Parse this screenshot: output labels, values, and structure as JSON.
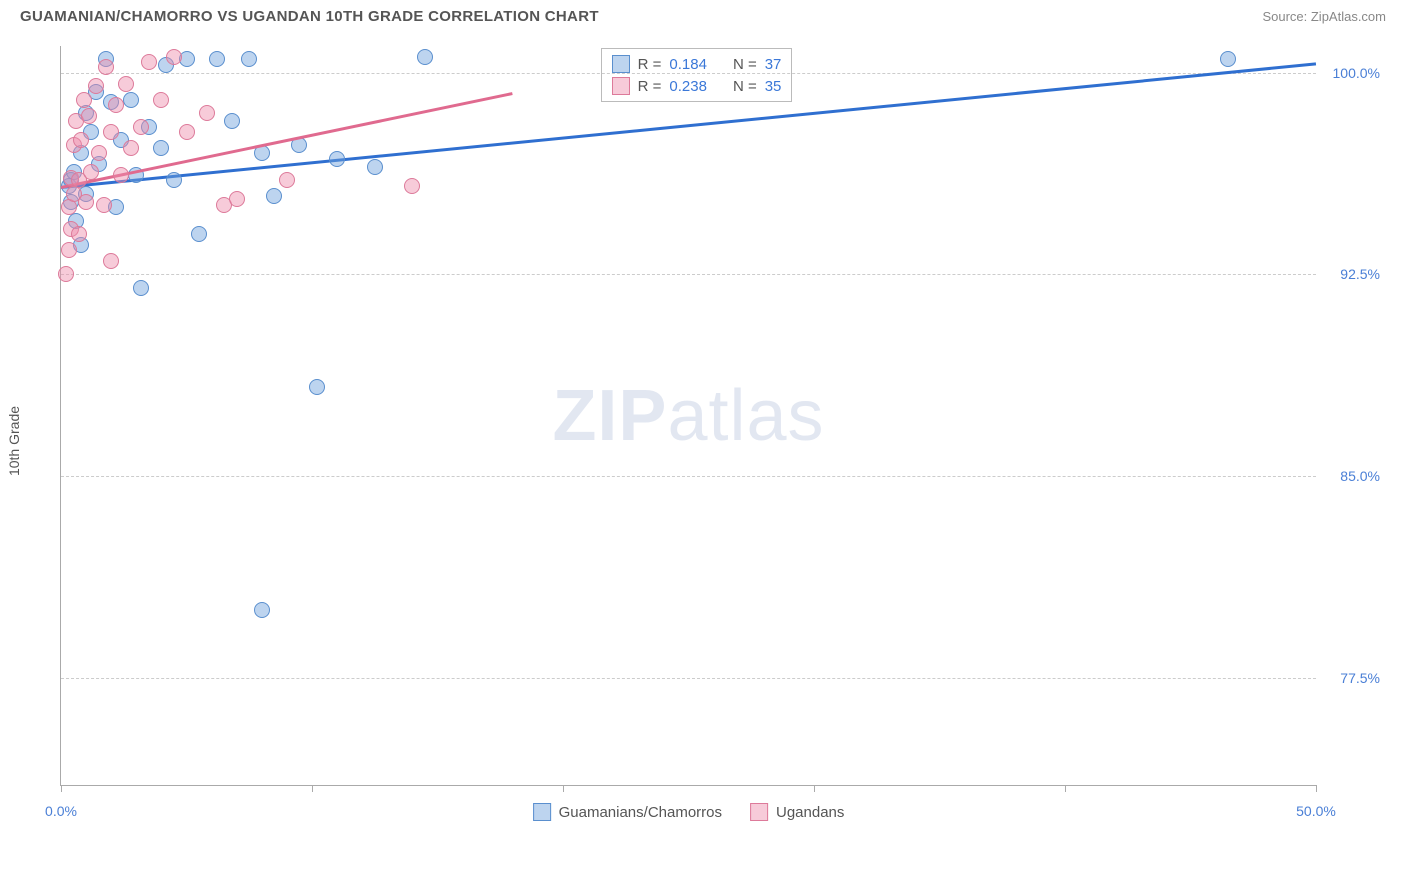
{
  "title": "GUAMANIAN/CHAMORRO VS UGANDAN 10TH GRADE CORRELATION CHART",
  "source_label": "Source: ",
  "source_name": "ZipAtlas.com",
  "y_axis_label": "10th Grade",
  "watermark_bold": "ZIP",
  "watermark_light": "atlas",
  "chart": {
    "type": "scatter",
    "xlim": [
      0.0,
      50.0
    ],
    "ylim": [
      73.5,
      101.0
    ],
    "x_ticks": [
      0.0,
      10.0,
      20.0,
      30.0,
      40.0,
      50.0
    ],
    "x_tick_labels": [
      "0.0%",
      "",
      "",
      "",
      "",
      "50.0%"
    ],
    "y_ticks": [
      77.5,
      85.0,
      92.5,
      100.0
    ],
    "y_tick_labels": [
      "77.5%",
      "85.0%",
      "92.5%",
      "100.0%"
    ],
    "grid_color": "#cccccc",
    "axis_color": "#aaaaaa",
    "background_color": "#ffffff",
    "marker_radius": 8,
    "series": [
      {
        "name": "Guamanians/Chamorros",
        "fill": "rgba(108,160,220,0.45)",
        "stroke": "#5a8fce",
        "line_color": "#2f6fd0",
        "R": "0.184",
        "N": "37",
        "trend": {
          "x1": 0.0,
          "y1": 95.8,
          "x2": 50.0,
          "y2": 100.4
        },
        "points": [
          [
            0.3,
            95.8
          ],
          [
            0.4,
            96.0
          ],
          [
            0.4,
            95.2
          ],
          [
            0.5,
            96.3
          ],
          [
            0.6,
            94.5
          ],
          [
            0.8,
            97.0
          ],
          [
            0.8,
            93.6
          ],
          [
            1.0,
            95.5
          ],
          [
            1.0,
            98.5
          ],
          [
            1.2,
            97.8
          ],
          [
            1.4,
            99.3
          ],
          [
            1.5,
            96.6
          ],
          [
            1.8,
            100.5
          ],
          [
            2.0,
            98.9
          ],
          [
            2.2,
            95.0
          ],
          [
            2.4,
            97.5
          ],
          [
            2.8,
            99.0
          ],
          [
            3.0,
            96.2
          ],
          [
            3.2,
            92.0
          ],
          [
            3.5,
            98.0
          ],
          [
            4.0,
            97.2
          ],
          [
            4.2,
            100.3
          ],
          [
            4.5,
            96.0
          ],
          [
            5.0,
            100.5
          ],
          [
            5.5,
            94.0
          ],
          [
            6.2,
            100.5
          ],
          [
            6.8,
            98.2
          ],
          [
            7.5,
            100.5
          ],
          [
            8.0,
            97.0
          ],
          [
            8.5,
            95.4
          ],
          [
            9.5,
            97.3
          ],
          [
            10.2,
            88.3
          ],
          [
            11.0,
            96.8
          ],
          [
            12.5,
            96.5
          ],
          [
            14.5,
            100.6
          ],
          [
            8.0,
            80.0
          ],
          [
            46.5,
            100.5
          ]
        ]
      },
      {
        "name": "Ugandans",
        "fill": "rgba(238,140,170,0.45)",
        "stroke": "#dd7a9a",
        "line_color": "#e06a8f",
        "R": "0.238",
        "N": "35",
        "trend": {
          "x1": 0.0,
          "y1": 95.8,
          "x2": 18.0,
          "y2": 99.3
        },
        "points": [
          [
            0.2,
            92.5
          ],
          [
            0.3,
            93.4
          ],
          [
            0.3,
            95.0
          ],
          [
            0.4,
            96.1
          ],
          [
            0.4,
            94.2
          ],
          [
            0.5,
            97.3
          ],
          [
            0.5,
            95.5
          ],
          [
            0.6,
            98.2
          ],
          [
            0.7,
            96.0
          ],
          [
            0.7,
            94.0
          ],
          [
            0.8,
            97.5
          ],
          [
            0.9,
            99.0
          ],
          [
            1.0,
            95.2
          ],
          [
            1.1,
            98.4
          ],
          [
            1.2,
            96.3
          ],
          [
            1.4,
            99.5
          ],
          [
            1.5,
            97.0
          ],
          [
            1.7,
            95.1
          ],
          [
            1.8,
            100.2
          ],
          [
            2.0,
            97.8
          ],
          [
            2.2,
            98.8
          ],
          [
            2.4,
            96.2
          ],
          [
            2.6,
            99.6
          ],
          [
            2.8,
            97.2
          ],
          [
            3.2,
            98.0
          ],
          [
            3.5,
            100.4
          ],
          [
            4.0,
            99.0
          ],
          [
            4.5,
            100.6
          ],
          [
            5.0,
            97.8
          ],
          [
            5.8,
            98.5
          ],
          [
            6.5,
            95.1
          ],
          [
            7.0,
            95.3
          ],
          [
            9.0,
            96.0
          ],
          [
            2.0,
            93.0
          ],
          [
            14.0,
            95.8
          ]
        ]
      }
    ],
    "legend_top": {
      "r_label": "R =",
      "n_label": "N ="
    }
  }
}
